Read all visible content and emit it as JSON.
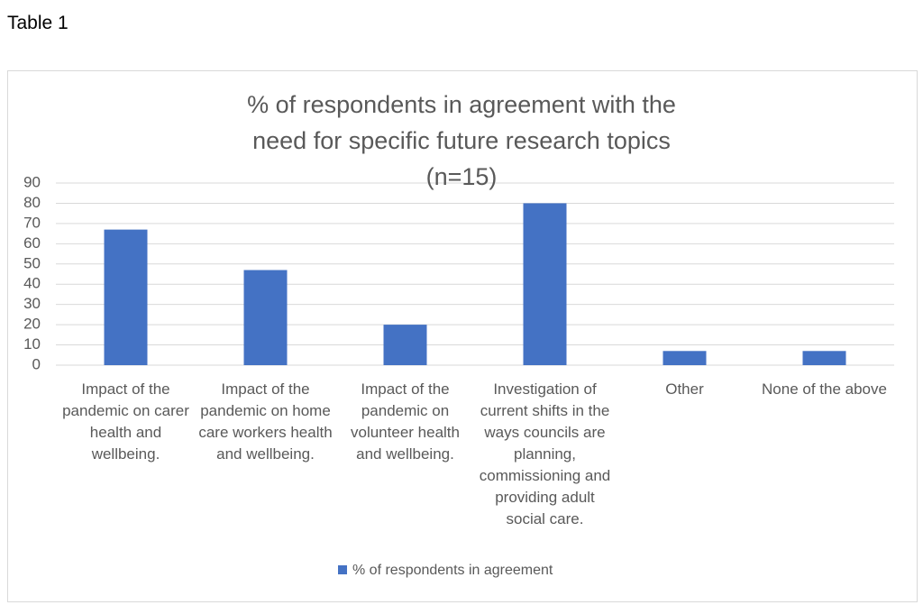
{
  "heading": "Table 1",
  "chart_data": {
    "type": "bar",
    "title": "% of respondents in agreement with the need for specific future research topics (n=15)",
    "categories": [
      "Impact of the pandemic on carer health and wellbeing.",
      "Impact of the pandemic on home care workers health and wellbeing.",
      "Impact of the pandemic on volunteer health and wellbeing.",
      "Investigation of current shifts in the ways councils are planning, commissioning and providing adult social care.",
      "Other",
      "None of the above"
    ],
    "series": [
      {
        "name": "% of respondents in agreement",
        "color": "#4472c4",
        "values": [
          67,
          47,
          20,
          80,
          7,
          7
        ]
      }
    ],
    "ylim": [
      0,
      90
    ],
    "yticks": [
      0,
      10,
      20,
      30,
      40,
      50,
      60,
      70,
      80,
      90
    ],
    "grid": true,
    "legend": "bottom"
  }
}
